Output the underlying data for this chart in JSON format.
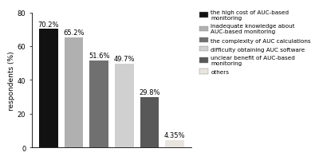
{
  "values": [
    70.2,
    65.2,
    51.6,
    49.7,
    29.8,
    4.35
  ],
  "labels": [
    "70.2%",
    "65.2%",
    "51.6%",
    "49.7%",
    "29.8%",
    "4.35%"
  ],
  "bar_colors": [
    "#111111",
    "#b0b0b0",
    "#707070",
    "#d0d0d0",
    "#585858",
    "#e8e4de"
  ],
  "ylabel": "respondents (%)",
  "ylim": [
    0,
    80
  ],
  "yticks": [
    0,
    20,
    40,
    60,
    80
  ],
  "legend_labels": [
    "the high cost of AUC-based\nmonitoring",
    "inadequate knowledge about\nAUC-based monitoring",
    "the complexity of AUC calculations",
    "difficulty obtaining AUC software",
    "unclear benefit of AUC-based\nmonitoring",
    "others"
  ],
  "legend_colors": [
    "#111111",
    "#b0b0b0",
    "#707070",
    "#d0d0d0",
    "#585858",
    "#e8e4de"
  ],
  "background_color": "#ffffff",
  "label_fontsize": 6.0,
  "ylabel_fontsize": 6.5,
  "tick_fontsize": 6.0,
  "legend_fontsize": 5.2
}
